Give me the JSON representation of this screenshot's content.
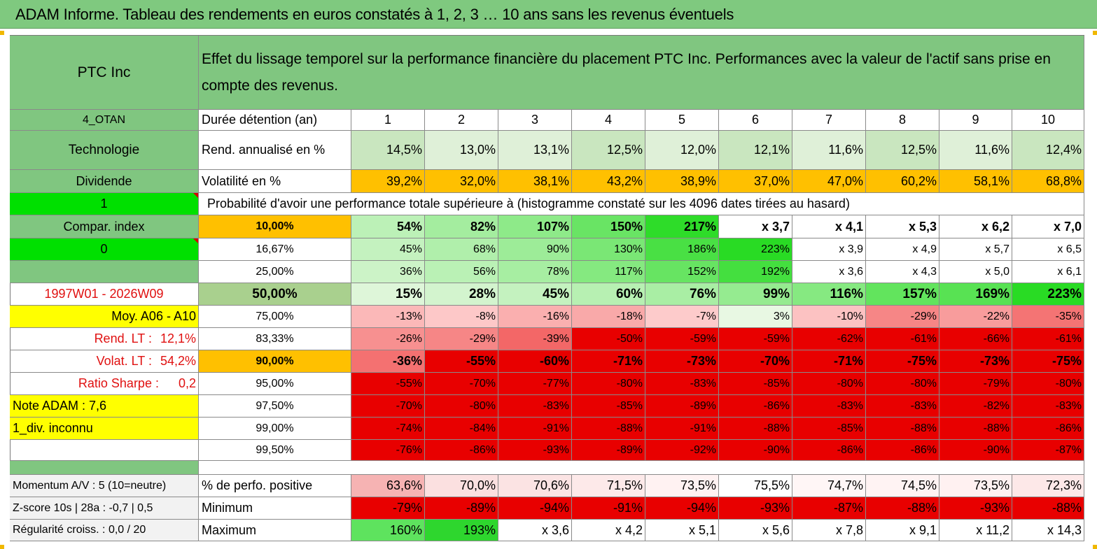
{
  "title": "ADAM Informe. Tableau des rendements en euros constatés à 1, 2, 3 … 10 ans sans les revenus éventuels",
  "header": {
    "name": "PTC Inc",
    "description": "Effet du lissage temporel sur la performance financière du placement PTC Inc. Performances avec la valeur de l'actif sans prise en compte des revenus."
  },
  "left": {
    "code": "4_OTAN",
    "sector": "Technologie",
    "dividend": "Dividende",
    "flag1": "1",
    "compar": "Compar. index",
    "flag0": "0",
    "period": "1997W01 - 2026W09",
    "moy": "Moy. A06 - A10",
    "rend_lt_label": "Rend. LT :",
    "rend_lt_value": "12,1%",
    "volat_lt_label": "Volat. LT :",
    "volat_lt_value": "54,2%",
    "sharpe_label": "Ratio Sharpe :",
    "sharpe_value": "0,2",
    "note": "Note ADAM : 7,6",
    "div_inconnu": "1_div. inconnu",
    "momentum": "Momentum A/V : 5 (10=neutre)",
    "zscore": "Z-score 10s | 28a : -0,7 | 0,5",
    "regularite": "Régularité croiss. : 0,0 / 20"
  },
  "labels": {
    "duree": "Durée détention (an)",
    "rend": "Rend. annualisé en %",
    "vol": "Volatilité en %",
    "proba": "Probabilité d'avoir une performance totale supérieure à (histogramme constaté sur les 4096 dates tirées au hasard)",
    "perfo_pos": "% de perfo. positive",
    "minimum": "Minimum",
    "maximum": "Maximum"
  },
  "years": [
    "1",
    "2",
    "3",
    "4",
    "5",
    "6",
    "7",
    "8",
    "9",
    "10"
  ],
  "rend": [
    "14,5%",
    "13,0%",
    "13,1%",
    "12,5%",
    "12,0%",
    "12,1%",
    "11,6%",
    "12,5%",
    "11,6%",
    "12,4%"
  ],
  "vol": [
    "39,2%",
    "32,0%",
    "38,1%",
    "43,2%",
    "38,9%",
    "37,0%",
    "47,0%",
    "60,2%",
    "58,1%",
    "68,8%"
  ],
  "proba_rows": [
    {
      "p": "10,00%",
      "v": [
        "54%",
        "82%",
        "107%",
        "150%",
        "217%",
        "x 3,7",
        "x 4,1",
        "x 5,3",
        "x 6,2",
        "x 7,0"
      ]
    },
    {
      "p": "16,67%",
      "v": [
        "45%",
        "68%",
        "90%",
        "130%",
        "186%",
        "223%",
        "x 3,9",
        "x 4,9",
        "x 5,7",
        "x 6,5"
      ]
    },
    {
      "p": "25,00%",
      "v": [
        "36%",
        "56%",
        "78%",
        "117%",
        "152%",
        "192%",
        "x 3,6",
        "x 4,3",
        "x 5,0",
        "x 6,1"
      ]
    },
    {
      "p": "50,00%",
      "v": [
        "15%",
        "28%",
        "45%",
        "60%",
        "76%",
        "99%",
        "116%",
        "157%",
        "169%",
        "223%"
      ]
    },
    {
      "p": "75,00%",
      "v": [
        "-13%",
        "-8%",
        "-16%",
        "-18%",
        "-7%",
        "3%",
        "-10%",
        "-29%",
        "-22%",
        "-35%"
      ]
    },
    {
      "p": "83,33%",
      "v": [
        "-26%",
        "-29%",
        "-39%",
        "-50%",
        "-59%",
        "-59%",
        "-62%",
        "-61%",
        "-66%",
        "-61%"
      ]
    },
    {
      "p": "90,00%",
      "v": [
        "-36%",
        "-55%",
        "-60%",
        "-71%",
        "-73%",
        "-70%",
        "-71%",
        "-75%",
        "-73%",
        "-75%"
      ]
    },
    {
      "p": "95,00%",
      "v": [
        "-55%",
        "-70%",
        "-77%",
        "-80%",
        "-83%",
        "-85%",
        "-80%",
        "-80%",
        "-79%",
        "-80%"
      ]
    },
    {
      "p": "97,50%",
      "v": [
        "-70%",
        "-80%",
        "-83%",
        "-85%",
        "-89%",
        "-86%",
        "-83%",
        "-83%",
        "-82%",
        "-83%"
      ]
    },
    {
      "p": "99,00%",
      "v": [
        "-74%",
        "-84%",
        "-91%",
        "-88%",
        "-91%",
        "-88%",
        "-85%",
        "-88%",
        "-88%",
        "-86%"
      ]
    },
    {
      "p": "99,50%",
      "v": [
        "-76%",
        "-86%",
        "-93%",
        "-89%",
        "-92%",
        "-90%",
        "-86%",
        "-86%",
        "-90%",
        "-87%"
      ]
    }
  ],
  "perfo_pos": [
    "63,6%",
    "70,0%",
    "70,6%",
    "71,5%",
    "73,5%",
    "75,5%",
    "74,7%",
    "74,5%",
    "73,5%",
    "72,3%"
  ],
  "minimum": [
    "-79%",
    "-89%",
    "-94%",
    "-91%",
    "-94%",
    "-93%",
    "-87%",
    "-88%",
    "-93%",
    "-88%"
  ],
  "maximum": [
    "160%",
    "193%",
    "x 3,6",
    "x 4,2",
    "x 5,1",
    "x 5,6",
    "x 7,8",
    "x 9,1",
    "x 11,2",
    "x 14,3"
  ],
  "colors": {
    "header_green": "#80c680",
    "bright_green": "#00e000",
    "orange": "#ffc000",
    "yellow": "#ffff00",
    "strong_red": "#e80000"
  }
}
